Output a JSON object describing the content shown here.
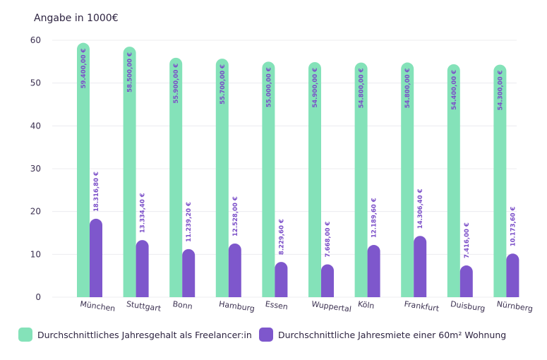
{
  "chart_data": {
    "type": "bar",
    "title": "Angabe in 1000€",
    "xlabel": "",
    "ylabel": "Angabe in 1000€",
    "ylim": [
      0,
      60
    ],
    "yticks": [
      0,
      10,
      20,
      30,
      40,
      50,
      60
    ],
    "grid": true,
    "legend_position": "bottom-left",
    "categories": [
      "München",
      "Stuttgart",
      "Bonn",
      "Hamburg",
      "Essen",
      "Wuppertal",
      "Köln",
      "Frankfurt",
      "Duisburg",
      "Nürnberg"
    ],
    "series": [
      {
        "name": "Durchschnittliches Jahresgehalt als Freelancer:in",
        "color": "#84e2b9",
        "label_color": "#7b4fc8",
        "values": [
          59.4,
          58.5,
          55.9,
          55.7,
          55.0,
          54.9,
          54.8,
          54.8,
          54.4,
          54.3
        ],
        "labels": [
          "59.400,00 €",
          "58.500,00 €",
          "55.900,00 €",
          "55.700,00 €",
          "55.000,00 €",
          "54.900,00 €",
          "54.800,00 €",
          "54.800,00 €",
          "54.400,00 €",
          "54.300,00 €"
        ]
      },
      {
        "name": "Durchschnittliche Jahresmiete einer 60m² Wohnung",
        "color": "#7e57cc",
        "label_color": "#7b4fc8",
        "values": [
          18.3168,
          13.3344,
          11.2392,
          12.528,
          8.2296,
          7.668,
          12.1896,
          14.3064,
          7.416,
          10.1736
        ],
        "labels": [
          "18.316,80 €",
          "13.334,40 €",
          "11.239,20 €",
          "12.528,00 €",
          "8.229,60 €",
          "7.668,00 €",
          "12.189,60 €",
          "14.306,40 €",
          "7.416,00 €",
          "10.173,60 €"
        ]
      }
    ]
  }
}
